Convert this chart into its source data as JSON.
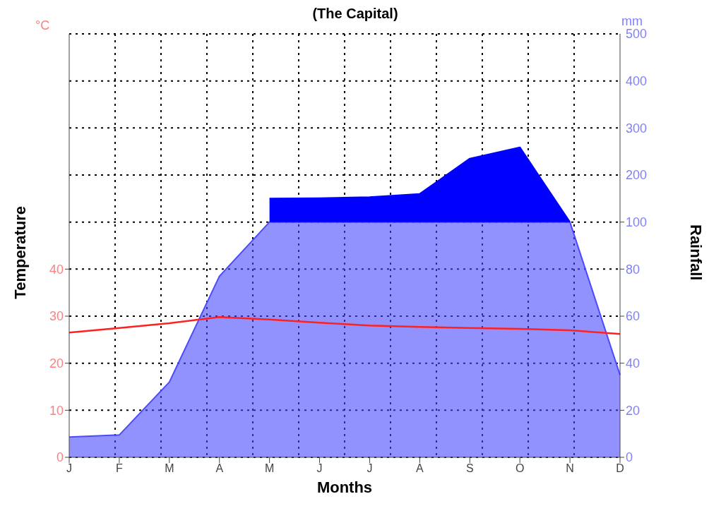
{
  "chart_data": {
    "type": "line",
    "title": "(The Capital)",
    "xlabel": "Months",
    "ylabel": "Temperature",
    "y2label": "Rainfall",
    "annotations": [
      "°C",
      "mm"
    ],
    "categories": [
      "J",
      "F",
      "M",
      "A",
      "M",
      "J",
      "J",
      "A",
      "S",
      "O",
      "N",
      "D"
    ],
    "series": [
      {
        "color": "#ff2020",
        "values": [
          26.5,
          27.5,
          28.5,
          29.8,
          29.3,
          28.6,
          28.0,
          27.7,
          27.5,
          27.3,
          27.0,
          26.2
        ]
      },
      {
        "type": "area",
        "axis": "y2",
        "color": "#4a4aff",
        "values": [
          8.6,
          9.5,
          32,
          77,
          100,
          100,
          100,
          100,
          100,
          100,
          100,
          35
        ]
      },
      {
        "type": "area",
        "axis": "y3",
        "color": "#0000ff",
        "values": [
          null,
          null,
          null,
          null,
          150,
          151,
          153,
          160,
          235,
          259,
          100,
          null
        ]
      }
    ],
    "ylim": [
      0,
      90
    ],
    "yticks": [
      0,
      10,
      20,
      30,
      40
    ],
    "y2lim": [
      0,
      180
    ],
    "y2ticks": [
      0,
      20,
      40,
      60,
      80,
      100
    ],
    "y3lim": [
      -400,
      500
    ],
    "y3ticks": [
      200,
      300,
      400,
      500
    ],
    "grid": true,
    "legend": false,
    "marker": "none",
    "line_style": "solid"
  }
}
